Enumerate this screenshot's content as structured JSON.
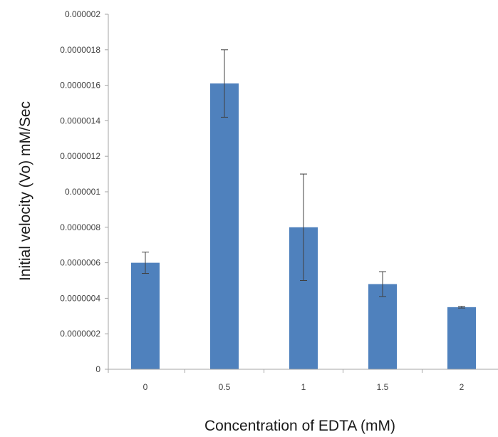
{
  "chart_data": {
    "type": "bar",
    "title": "",
    "xlabel": "Concentration of EDTA  (mM)",
    "ylabel": "Initial velocity (Vo) mM/Sec",
    "categories": [
      "0",
      "0.5",
      "1",
      "1.5",
      "2"
    ],
    "values": [
      6e-07,
      1.61e-06,
      8e-07,
      4.8e-07,
      3.5e-07
    ],
    "error": [
      6e-08,
      1.9e-07,
      3e-07,
      7e-08,
      5e-09
    ],
    "ylim": [
      0,
      2e-06
    ],
    "yticks": [
      {
        "value": 0,
        "label": "0"
      },
      {
        "value": 2e-07,
        "label": "0.0000002"
      },
      {
        "value": 4e-07,
        "label": "0.0000004"
      },
      {
        "value": 6e-07,
        "label": "0.0000006"
      },
      {
        "value": 8e-07,
        "label": "0.0000008"
      },
      {
        "value": 1e-06,
        "label": "0.000001"
      },
      {
        "value": 1.2e-06,
        "label": "0.0000012"
      },
      {
        "value": 1.4e-06,
        "label": "0.0000014"
      },
      {
        "value": 1.6e-06,
        "label": "0.0000016"
      },
      {
        "value": 1.8e-06,
        "label": "0.0000018"
      },
      {
        "value": 2e-06,
        "label": "0.000002"
      }
    ],
    "grid": false,
    "legend": "none",
    "colors": {
      "bar": "#4f81bd",
      "axis": "#a6a6a6",
      "error_bar": "#404040"
    }
  }
}
